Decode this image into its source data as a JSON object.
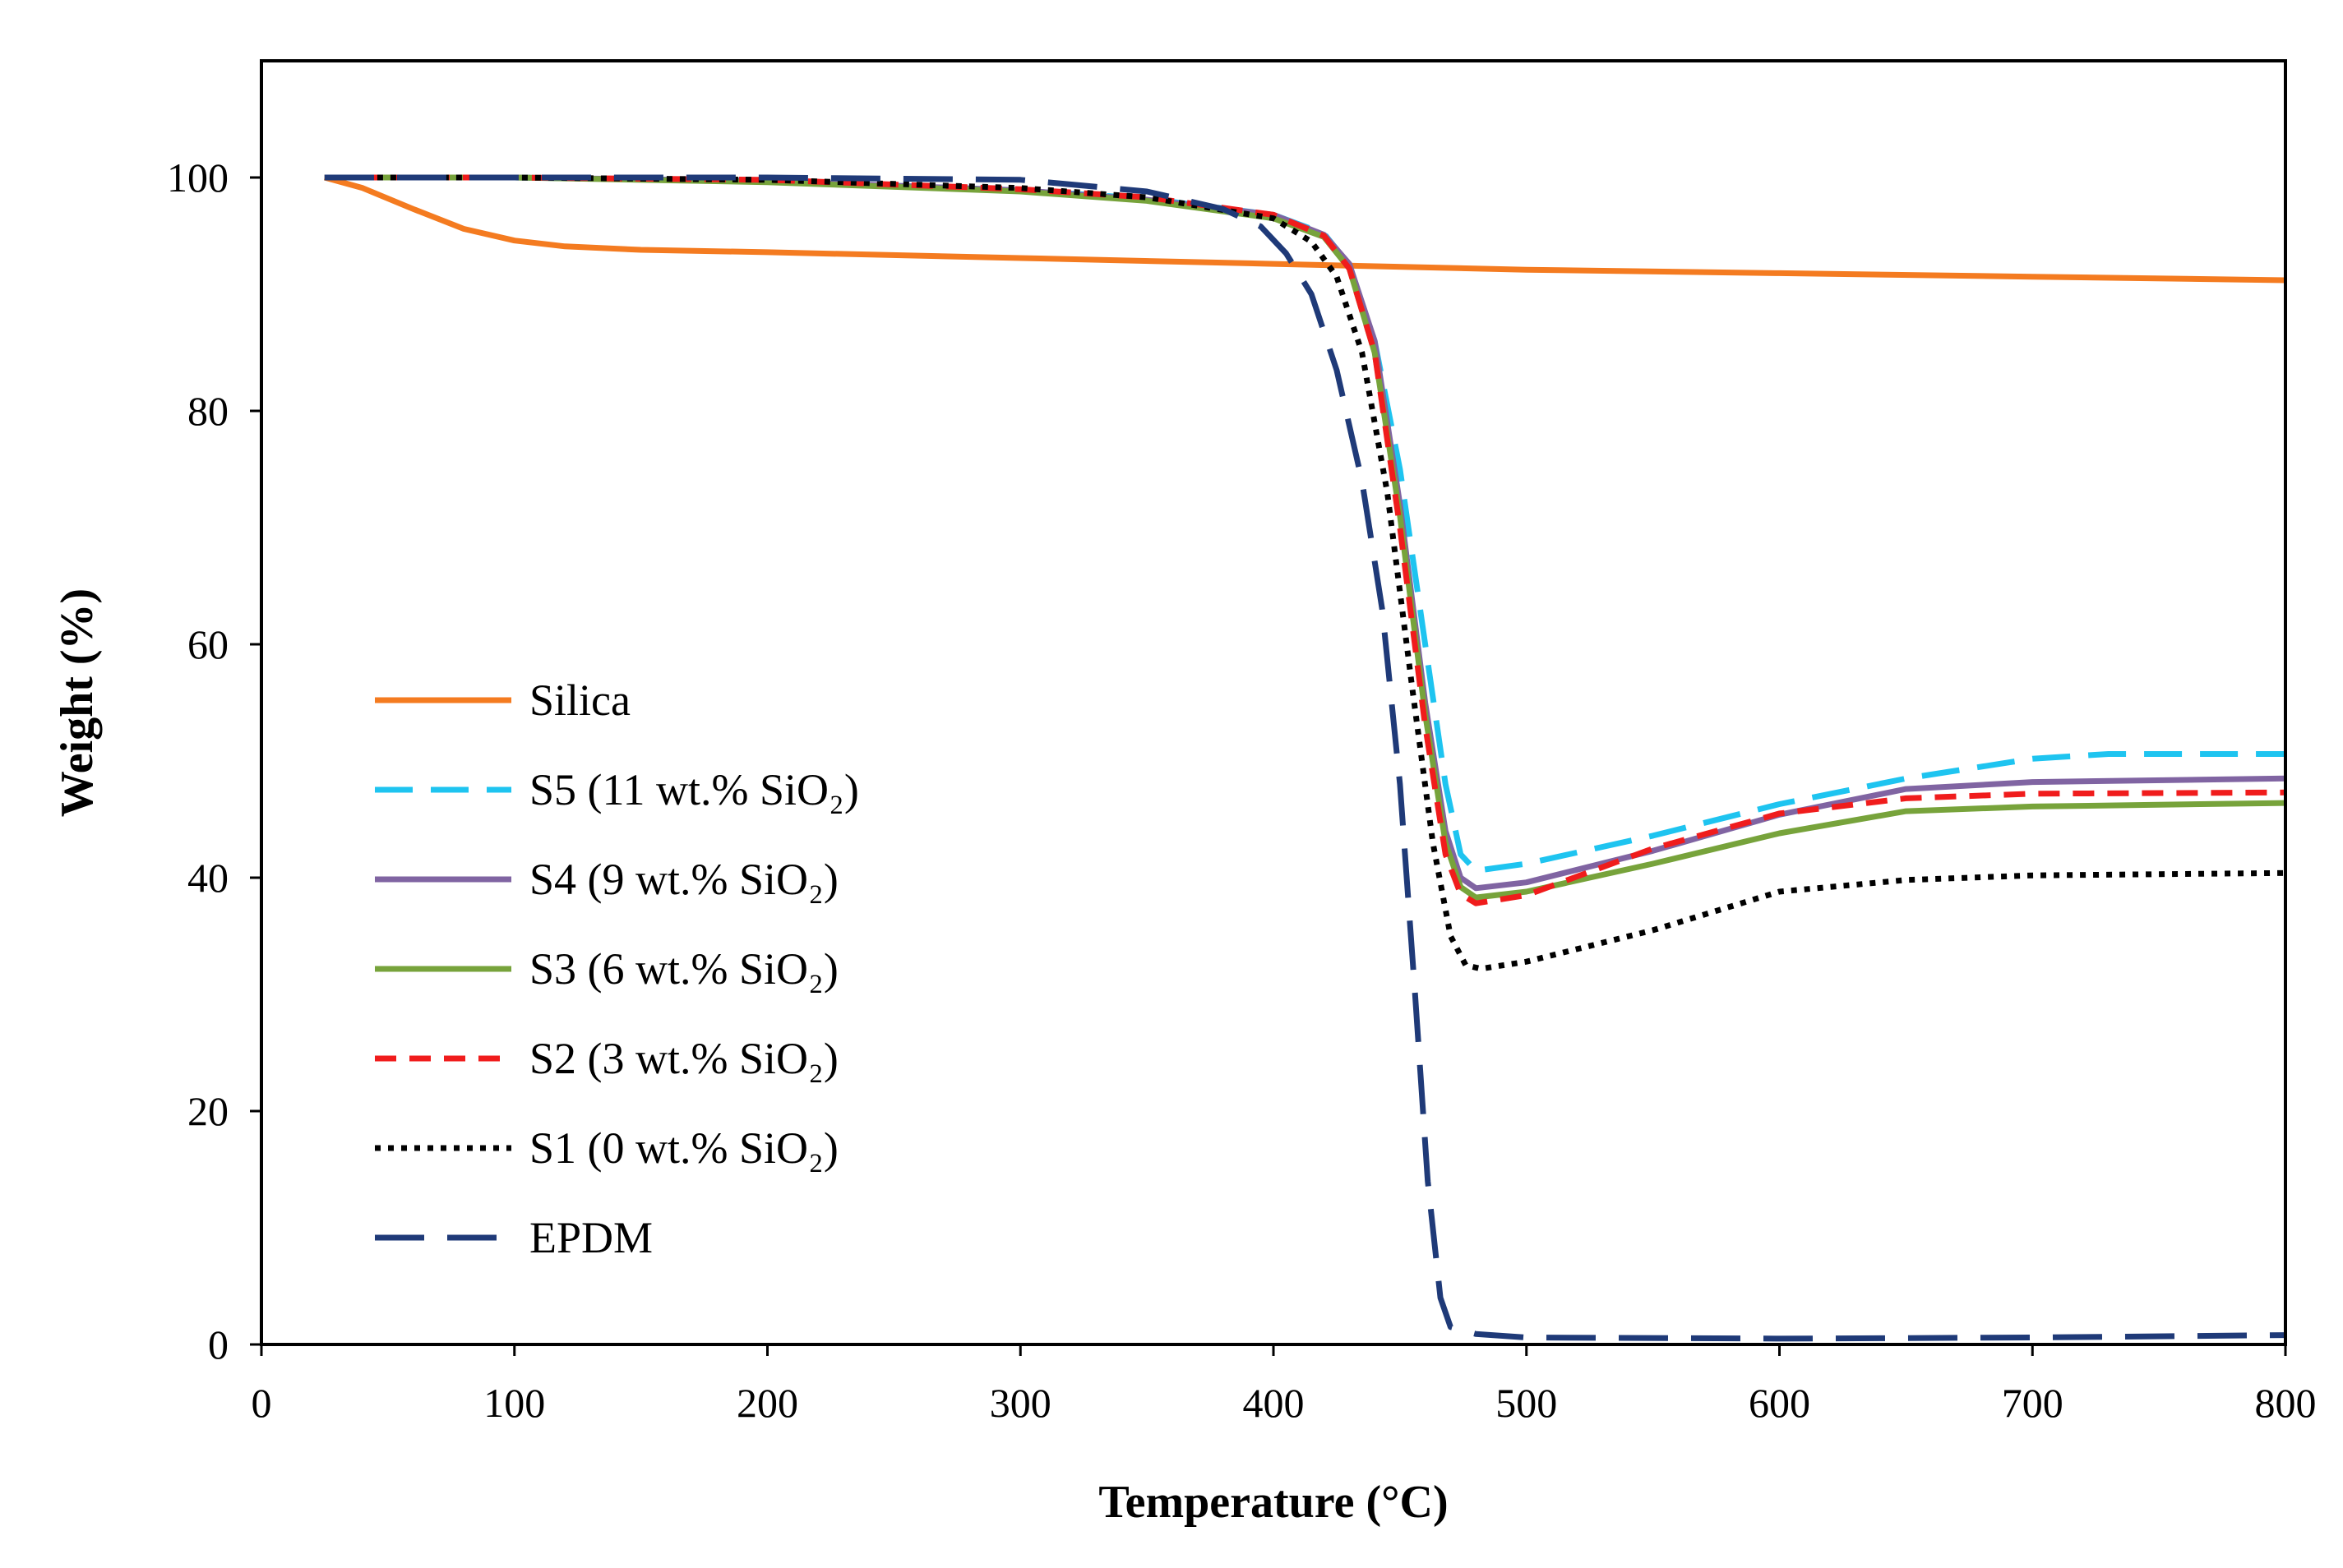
{
  "chart_data": {
    "type": "line",
    "title": "",
    "xlabel": "Temperature (°C)",
    "ylabel": "Weight (%)",
    "xlim": [
      0,
      800
    ],
    "ylim": [
      0,
      110
    ],
    "x_ticks": [
      0,
      100,
      200,
      300,
      400,
      500,
      600,
      700,
      800
    ],
    "y_ticks": [
      0,
      20,
      40,
      60,
      80,
      100
    ],
    "grid": false,
    "legend_position": "center-left",
    "series": [
      {
        "name": "Silica",
        "color": "#f47b20",
        "style": "solid",
        "points": [
          [
            25,
            100
          ],
          [
            40,
            99.1
          ],
          [
            60,
            97.3
          ],
          [
            80,
            95.6
          ],
          [
            100,
            94.6
          ],
          [
            120,
            94.1
          ],
          [
            150,
            93.8
          ],
          [
            200,
            93.6
          ],
          [
            300,
            93.1
          ],
          [
            400,
            92.6
          ],
          [
            500,
            92.1
          ],
          [
            600,
            91.8
          ],
          [
            700,
            91.5
          ],
          [
            800,
            91.2
          ]
        ]
      },
      {
        "name": "S5 (11 wt.% SiO₂)",
        "color": "#1ec4f0",
        "style": "dash",
        "points": [
          [
            25,
            100
          ],
          [
            100,
            100
          ],
          [
            200,
            99.7
          ],
          [
            300,
            98.9
          ],
          [
            350,
            98.2
          ],
          [
            400,
            96.8
          ],
          [
            420,
            95.2
          ],
          [
            430,
            92.5
          ],
          [
            440,
            86
          ],
          [
            450,
            75
          ],
          [
            460,
            60
          ],
          [
            468,
            48
          ],
          [
            474,
            42
          ],
          [
            480,
            40.6
          ],
          [
            500,
            41.2
          ],
          [
            550,
            43.6
          ],
          [
            600,
            46.3
          ],
          [
            650,
            48.5
          ],
          [
            700,
            50.2
          ],
          [
            730,
            50.6
          ],
          [
            800,
            50.6
          ]
        ]
      },
      {
        "name": "S4 (9 wt.% SiO₂)",
        "color": "#8064a2",
        "style": "solid",
        "points": [
          [
            25,
            100
          ],
          [
            100,
            100
          ],
          [
            200,
            99.7
          ],
          [
            300,
            98.9
          ],
          [
            350,
            98.1
          ],
          [
            400,
            96.8
          ],
          [
            420,
            95.1
          ],
          [
            430,
            92.6
          ],
          [
            440,
            86
          ],
          [
            450,
            72
          ],
          [
            460,
            55
          ],
          [
            468,
            44
          ],
          [
            474,
            40
          ],
          [
            480,
            39.1
          ],
          [
            500,
            39.6
          ],
          [
            550,
            42.3
          ],
          [
            600,
            45.4
          ],
          [
            650,
            47.6
          ],
          [
            700,
            48.2
          ],
          [
            800,
            48.5
          ]
        ]
      },
      {
        "name": "S3 (6 wt.% SiO₂)",
        "color": "#77a33b",
        "style": "solid",
        "points": [
          [
            25,
            100
          ],
          [
            100,
            100
          ],
          [
            200,
            99.6
          ],
          [
            300,
            98.8
          ],
          [
            350,
            98
          ],
          [
            400,
            96.5
          ],
          [
            420,
            94.9
          ],
          [
            430,
            92.2
          ],
          [
            440,
            85
          ],
          [
            450,
            71
          ],
          [
            460,
            54
          ],
          [
            468,
            43
          ],
          [
            474,
            39.2
          ],
          [
            480,
            38.3
          ],
          [
            500,
            38.8
          ],
          [
            550,
            41.2
          ],
          [
            600,
            43.8
          ],
          [
            650,
            45.7
          ],
          [
            700,
            46.1
          ],
          [
            800,
            46.4
          ]
        ]
      },
      {
        "name": "S2 (3 wt.% SiO₂)",
        "color": "#f01c1c",
        "style": "dash-short",
        "points": [
          [
            25,
            100
          ],
          [
            100,
            100
          ],
          [
            200,
            99.8
          ],
          [
            300,
            99
          ],
          [
            350,
            98.3
          ],
          [
            400,
            96.8
          ],
          [
            420,
            95
          ],
          [
            430,
            92.2
          ],
          [
            440,
            85
          ],
          [
            450,
            70
          ],
          [
            460,
            53
          ],
          [
            468,
            42
          ],
          [
            474,
            38.6
          ],
          [
            480,
            37.8
          ],
          [
            500,
            38.5
          ],
          [
            550,
            42.5
          ],
          [
            600,
            45.5
          ],
          [
            650,
            46.8
          ],
          [
            700,
            47.2
          ],
          [
            800,
            47.3
          ]
        ]
      },
      {
        "name": "S1 (0 wt.% SiO₂)",
        "color": "#000000",
        "style": "dot",
        "points": [
          [
            25,
            100
          ],
          [
            100,
            100
          ],
          [
            200,
            99.8
          ],
          [
            300,
            99.1
          ],
          [
            350,
            98.3
          ],
          [
            400,
            96.5
          ],
          [
            415,
            94.5
          ],
          [
            425,
            91.5
          ],
          [
            435,
            85
          ],
          [
            445,
            73
          ],
          [
            455,
            56
          ],
          [
            463,
            43
          ],
          [
            470,
            35
          ],
          [
            476,
            32.5
          ],
          [
            482,
            32.2
          ],
          [
            500,
            32.8
          ],
          [
            550,
            35.5
          ],
          [
            600,
            38.8
          ],
          [
            650,
            39.8
          ],
          [
            700,
            40.2
          ],
          [
            800,
            40.4
          ]
        ]
      },
      {
        "name": "EPDM",
        "color": "#1f3a78",
        "style": "long-dash",
        "points": [
          [
            25,
            100
          ],
          [
            100,
            100
          ],
          [
            200,
            100
          ],
          [
            300,
            99.8
          ],
          [
            350,
            98.8
          ],
          [
            380,
            97.3
          ],
          [
            395,
            95.8
          ],
          [
            405,
            93.5
          ],
          [
            415,
            90
          ],
          [
            425,
            83.5
          ],
          [
            435,
            74
          ],
          [
            443,
            63
          ],
          [
            450,
            48
          ],
          [
            456,
            30
          ],
          [
            461,
            14
          ],
          [
            466,
            4
          ],
          [
            470,
            1.5
          ],
          [
            480,
            0.9
          ],
          [
            500,
            0.6
          ],
          [
            600,
            0.5
          ],
          [
            700,
            0.6
          ],
          [
            800,
            0.8
          ]
        ]
      }
    ]
  }
}
